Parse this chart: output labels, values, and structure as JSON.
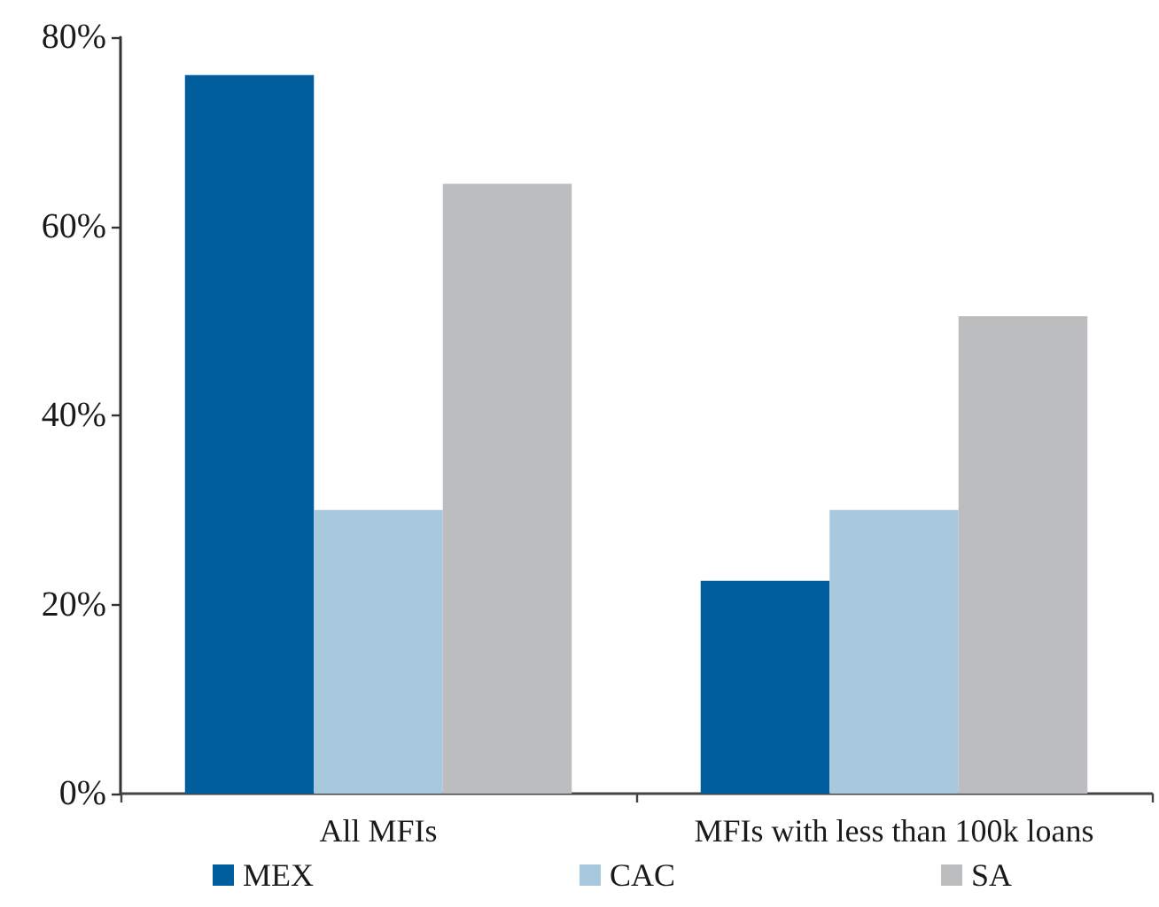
{
  "chart_data": {
    "type": "bar",
    "categories": [
      "All MFIs",
      "MFIs with less than 100k loans"
    ],
    "series": [
      {
        "name": "MEX",
        "color": "#005e9e",
        "values": [
          76,
          22.5
        ]
      },
      {
        "name": "CAC",
        "color": "#a8c8de",
        "values": [
          30,
          30
        ]
      },
      {
        "name": "SA",
        "color": "#bcbdbf",
        "values": [
          64.5,
          50.5
        ]
      }
    ],
    "ylim": [
      0,
      80
    ],
    "yticks": [
      {
        "value": 0,
        "label": "0%"
      },
      {
        "value": 20,
        "label": "20%"
      },
      {
        "value": 40,
        "label": "40%"
      },
      {
        "value": 60,
        "label": "60%"
      },
      {
        "value": 80,
        "label": "80%"
      }
    ],
    "grid": false,
    "legend": "bottom"
  }
}
